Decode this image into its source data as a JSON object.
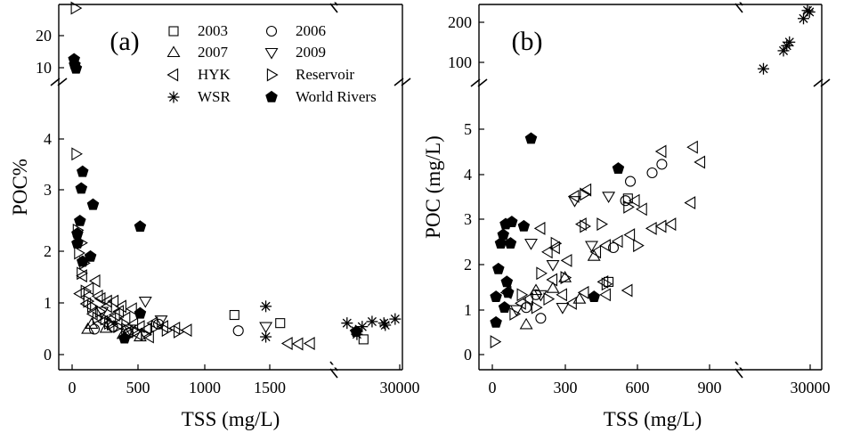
{
  "chart_data": [
    {
      "type": "scatter",
      "panel_label": "(a)",
      "xlabel": "TSS (mg/L)",
      "ylabel": "POC%",
      "x_axis_segments": [
        {
          "range": [
            0,
            2000
          ],
          "ticks": [
            "0",
            "500",
            "1000",
            "1500"
          ]
        },
        {
          "range": [
            20000,
            30000
          ],
          "ticks": [
            "30000"
          ]
        }
      ],
      "y_axis_segments": [
        {
          "range": [
            0,
            5
          ],
          "ticks": [
            "0",
            "1",
            "2",
            "3",
            "4"
          ]
        },
        {
          "range": [
            6,
            25
          ],
          "ticks": [
            "10",
            "20"
          ]
        }
      ],
      "legend": {
        "placement": "top-right",
        "entries": [
          {
            "label": "2003",
            "marker": "square"
          },
          {
            "label": "2006",
            "marker": "circle"
          },
          {
            "label": "2007",
            "marker": "triangle-up"
          },
          {
            "label": "2009",
            "marker": "triangle-down"
          },
          {
            "label": "HYK",
            "marker": "triangle-left"
          },
          {
            "label": "Reservoir",
            "marker": "triangle-right"
          },
          {
            "label": "WSR",
            "marker": "asterisk"
          },
          {
            "label": "World Rivers",
            "marker": "pentagon-filled"
          }
        ]
      },
      "series": [
        {
          "name": "2003",
          "marker": "square",
          "points": [
            [
              1240,
              0.78
            ],
            [
              1590,
              0.62
            ],
            [
              24500,
              0.3
            ]
          ]
        },
        {
          "name": "2006",
          "marker": "circle",
          "points": [
            [
              170,
              0.5
            ],
            [
              1270,
              0.47
            ],
            [
              310,
              0.55
            ],
            [
              430,
              0.42
            ],
            [
              660,
              0.6
            ]
          ]
        },
        {
          "name": "2007",
          "marker": "triangle-up",
          "points": [
            [
              150,
              0.6
            ],
            [
              260,
              0.52
            ],
            [
              390,
              0.4
            ],
            [
              520,
              0.35
            ],
            [
              120,
              0.5
            ]
          ]
        },
        {
          "name": "2009",
          "marker": "triangle-down",
          "points": [
            [
              1480,
              0.55
            ],
            [
              560,
              1.05
            ],
            [
              230,
              0.85
            ],
            [
              680,
              0.68
            ],
            [
              440,
              0.5
            ]
          ]
        },
        {
          "name": "HYK",
          "marker": "triangle-left",
          "points": [
            [
              80,
              1.55
            ],
            [
              130,
              1.3
            ],
            [
              180,
              1.45
            ],
            [
              220,
              1.1
            ],
            [
              270,
              0.95
            ],
            [
              320,
              1.05
            ],
            [
              360,
              0.85
            ],
            [
              410,
              0.72
            ],
            [
              470,
              0.6
            ],
            [
              520,
              0.55
            ],
            [
              570,
              0.5
            ],
            [
              620,
              0.62
            ],
            [
              700,
              0.55
            ],
            [
              790,
              0.52
            ],
            [
              880,
              0.48
            ],
            [
              1650,
              0.22
            ],
            [
              1730,
              0.21
            ],
            [
              1820,
              0.22
            ],
            [
              110,
              1.0
            ],
            [
              160,
              0.8
            ],
            [
              240,
              0.65
            ],
            [
              300,
              0.7
            ],
            [
              350,
              0.6
            ],
            [
              430,
              0.45
            ],
            [
              500,
              0.4
            ],
            [
              590,
              0.35
            ],
            [
              60,
              1.2
            ],
            [
              200,
              1.15
            ],
            [
              270,
              1.05
            ],
            [
              380,
              0.95
            ],
            [
              460,
              0.9
            ],
            [
              330,
              0.78
            ]
          ]
        },
        {
          "name": "Reservoir",
          "marker": "triangle-right",
          "points": [
            [
              25,
              24.0
            ],
            [
              30,
              3.95
            ],
            [
              40,
              2.45
            ],
            [
              70,
              2.2
            ],
            [
              90,
              1.8
            ],
            [
              70,
              1.6
            ],
            [
              100,
              1.25
            ],
            [
              150,
              0.95
            ],
            [
              210,
              0.85
            ],
            [
              250,
              0.7
            ],
            [
              300,
              0.6
            ],
            [
              350,
              0.55
            ],
            [
              410,
              0.5
            ],
            [
              480,
              0.45
            ],
            [
              560,
              0.4
            ],
            [
              640,
              0.55
            ],
            [
              720,
              0.48
            ],
            [
              810,
              0.45
            ],
            [
              50,
              2.0
            ],
            [
              120,
              1.05
            ],
            [
              190,
              0.72
            ],
            [
              280,
              0.62
            ]
          ]
        },
        {
          "name": "WSR",
          "marker": "asterisk",
          "points": [
            [
              1480,
              0.95
            ],
            [
              1480,
              0.35
            ],
            [
              22000,
              0.62
            ],
            [
              23300,
              0.47
            ],
            [
              23500,
              0.4
            ],
            [
              24300,
              0.55
            ],
            [
              25800,
              0.65
            ],
            [
              27600,
              0.62
            ],
            [
              27800,
              0.58
            ],
            [
              29300,
              0.7
            ]
          ]
        },
        {
          "name": "World Rivers",
          "marker": "pentagon-filled",
          "points": [
            [
              15,
              10.0
            ],
            [
              20,
              8.5
            ],
            [
              30,
              7.5
            ],
            [
              80,
              3.6
            ],
            [
              70,
              3.27
            ],
            [
              160,
              2.95
            ],
            [
              60,
              2.63
            ],
            [
              520,
              2.52
            ],
            [
              40,
              2.38
            ],
            [
              40,
              2.19
            ],
            [
              140,
              1.93
            ],
            [
              80,
              1.83
            ],
            [
              520,
              0.81
            ],
            [
              400,
              0.32
            ],
            [
              23400,
              0.45
            ]
          ]
        }
      ]
    },
    {
      "type": "scatter",
      "panel_label": "(b)",
      "xlabel": "TSS (mg/L)",
      "ylabel": "POC (mg/L)",
      "x_axis_segments": [
        {
          "range": [
            0,
            1000
          ],
          "ticks": [
            "0",
            "300",
            "600",
            "900"
          ]
        },
        {
          "range": [
            20000,
            30000
          ],
          "ticks": [
            "30000"
          ]
        }
      ],
      "y_axis_segments": [
        {
          "range": [
            0,
            6
          ],
          "ticks": [
            "0",
            "1",
            "2",
            "3",
            "4",
            "5"
          ]
        },
        {
          "range": [
            60,
            200
          ],
          "ticks": [
            "100",
            "200"
          ]
        }
      ],
      "series": [
        {
          "name": "2003",
          "marker": "square",
          "points": [
            [
              480,
              1.7
            ],
            [
              560,
              3.65
            ]
          ]
        },
        {
          "name": "2006",
          "marker": "circle",
          "points": [
            [
              570,
              4.05
            ],
            [
              660,
              4.25
            ],
            [
              700,
              4.45
            ],
            [
              550,
              3.6
            ],
            [
              500,
              2.5
            ],
            [
              180,
              1.4
            ],
            [
              200,
              0.85
            ],
            [
              140,
              1.1
            ]
          ]
        },
        {
          "name": "2007",
          "marker": "triangle-up",
          "points": [
            [
              140,
              0.7
            ],
            [
              250,
              1.55
            ],
            [
              360,
              1.3
            ],
            [
              420,
              2.3
            ],
            [
              300,
              1.8
            ],
            [
              180,
              1.5
            ]
          ]
        },
        {
          "name": "2009",
          "marker": "triangle-down",
          "points": [
            [
              160,
              2.6
            ],
            [
              250,
              2.1
            ],
            [
              340,
              3.6
            ],
            [
              410,
              2.55
            ],
            [
              480,
              3.7
            ],
            [
              200,
              1.4
            ],
            [
              290,
              1.1
            ],
            [
              100,
              1.05
            ]
          ]
        },
        {
          "name": "HYK",
          "marker": "triangle-left",
          "points": [
            [
              700,
              4.75
            ],
            [
              830,
              4.85
            ],
            [
              860,
              4.5
            ],
            [
              820,
              3.55
            ],
            [
              740,
              3.05
            ],
            [
              700,
              3.0
            ],
            [
              660,
              2.95
            ],
            [
              620,
              3.4
            ],
            [
              590,
              3.6
            ],
            [
              570,
              2.8
            ],
            [
              520,
              2.65
            ],
            [
              470,
              2.55
            ],
            [
              430,
              2.4
            ],
            [
              370,
              3.05
            ],
            [
              340,
              3.7
            ],
            [
              390,
              3.85
            ],
            [
              310,
              2.2
            ],
            [
              260,
              2.5
            ],
            [
              200,
              2.95
            ],
            [
              250,
              1.75
            ],
            [
              290,
              1.4
            ],
            [
              330,
              1.2
            ],
            [
              380,
              1.45
            ],
            [
              470,
              1.4
            ],
            [
              560,
              1.5
            ],
            [
              460,
              1.7
            ],
            [
              150,
              1.3
            ],
            [
              120,
              1.2
            ],
            [
              60,
              1.45
            ],
            [
              230,
              2.4
            ]
          ]
        },
        {
          "name": "Reservoir",
          "marker": "triangle-right",
          "points": [
            [
              10,
              0.3
            ],
            [
              120,
              1.4
            ],
            [
              200,
              1.9
            ],
            [
              260,
              2.6
            ],
            [
              300,
              1.8
            ],
            [
              380,
              3.0
            ],
            [
              450,
              3.05
            ],
            [
              470,
              1.65
            ],
            [
              180,
              1.1
            ],
            [
              230,
              1.3
            ],
            [
              90,
              0.95
            ],
            [
              380,
              3.75
            ],
            [
              560,
              3.45
            ],
            [
              600,
              2.55
            ]
          ]
        },
        {
          "name": "WSR",
          "marker": "asterisk",
          "points": [
            [
              23000,
              72
            ],
            [
              26000,
              108
            ],
            [
              26500,
              118
            ],
            [
              26900,
              125
            ],
            [
              29000,
              172
            ],
            [
              29600,
              188
            ],
            [
              29900,
              185
            ]
          ]
        },
        {
          "name": "World Rivers",
          "marker": "pentagon-filled",
          "points": [
            [
              15,
              0.75
            ],
            [
              15,
              1.35
            ],
            [
              25,
              2.0
            ],
            [
              35,
              2.6
            ],
            [
              45,
              2.8
            ],
            [
              55,
              3.05
            ],
            [
              60,
              1.7
            ],
            [
              50,
              1.1
            ],
            [
              65,
              1.45
            ],
            [
              75,
              2.6
            ],
            [
              80,
              3.1
            ],
            [
              130,
              3.0
            ],
            [
              160,
              5.05
            ],
            [
              420,
              1.35
            ],
            [
              520,
              4.35
            ]
          ]
        }
      ]
    }
  ]
}
